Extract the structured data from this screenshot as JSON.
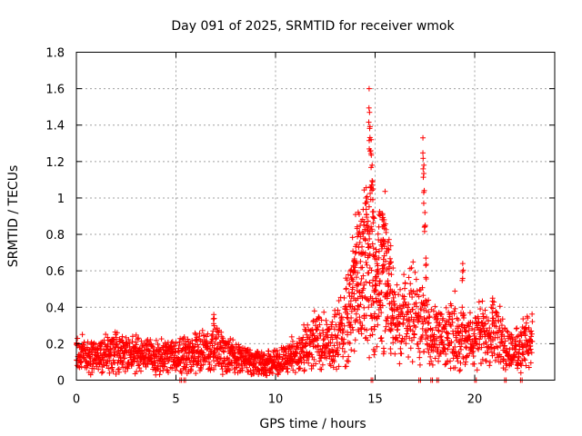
{
  "chart_data": {
    "type": "scatter",
    "title": "Day 091 of 2025, SRMTID for receiver wmok",
    "xlabel": "GPS time / hours",
    "ylabel": "SRMTID / TECUs",
    "xlim": [
      0,
      24
    ],
    "ylim": [
      0,
      1.8
    ],
    "xticks": [
      0,
      5,
      10,
      15,
      20
    ],
    "xtick_labels": [
      "0",
      "5",
      "10",
      "15",
      "20"
    ],
    "yticks": [
      0,
      0.2,
      0.4,
      0.6,
      0.8,
      1.0,
      1.2,
      1.4,
      1.6,
      1.8
    ],
    "ytick_labels": [
      "0",
      "0.2",
      "0.4",
      "0.6",
      "0.8",
      "1",
      "1.2",
      "1.4",
      "1.6",
      "1.8"
    ],
    "grid": true,
    "marker": "+",
    "color": "#ff0000",
    "series": [
      {
        "name": "SRMTID",
        "profile": {
          "x": [
            0,
            1,
            2,
            3,
            4,
            5,
            6,
            7,
            8,
            9,
            10,
            11,
            12,
            13,
            13.5,
            14,
            14.5,
            14.8,
            15,
            15.5,
            16,
            16.5,
            17,
            17.5,
            18,
            18.5,
            19,
            19.5,
            20,
            20.5,
            21,
            21.5,
            22,
            22.9
          ],
          "y": [
            0.15,
            0.13,
            0.16,
            0.14,
            0.13,
            0.13,
            0.15,
            0.17,
            0.12,
            0.09,
            0.1,
            0.14,
            0.22,
            0.22,
            0.32,
            0.5,
            0.6,
            0.7,
            0.45,
            0.62,
            0.3,
            0.35,
            0.38,
            0.3,
            0.24,
            0.22,
            0.28,
            0.22,
            0.24,
            0.25,
            0.28,
            0.18,
            0.16,
            0.22
          ]
        },
        "spikes": [
          {
            "x": 6.9,
            "y": 0.36
          },
          {
            "x": 14.55,
            "y": 1.0
          },
          {
            "x": 14.7,
            "y": 1.6
          },
          {
            "x": 14.72,
            "y": 1.47
          },
          {
            "x": 14.8,
            "y": 1.32
          },
          {
            "x": 14.85,
            "y": 1.18
          },
          {
            "x": 14.9,
            "y": 1.05
          },
          {
            "x": 15.4,
            "y": 0.88
          },
          {
            "x": 17.4,
            "y": 1.33
          },
          {
            "x": 17.45,
            "y": 1.18
          },
          {
            "x": 17.5,
            "y": 0.92
          },
          {
            "x": 17.55,
            "y": 0.67
          },
          {
            "x": 19.4,
            "y": 0.64
          },
          {
            "x": 20.9,
            "y": 0.45
          }
        ],
        "zeros": [
          5.2,
          5.4,
          14.8,
          17.2,
          17.8,
          18.1,
          20.0,
          21.5,
          22.3
        ]
      }
    ]
  }
}
